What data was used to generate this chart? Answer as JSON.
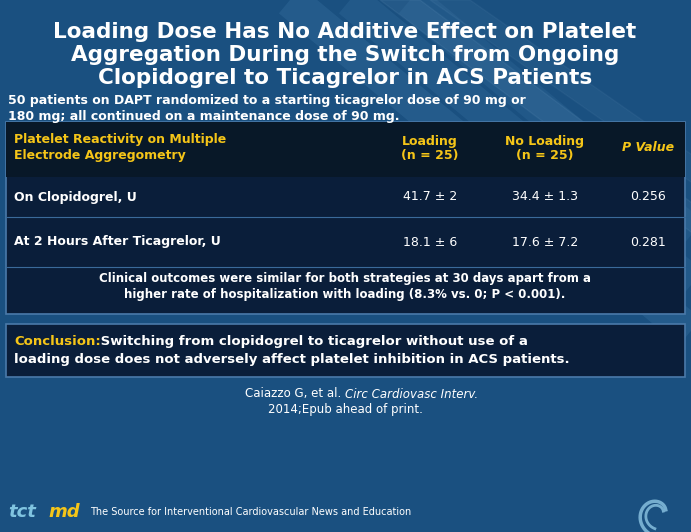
{
  "title_line1": "Loading Dose Has No Additive Effect on Platelet",
  "title_line2": "Aggregation During the Switch from Ongoing",
  "title_line3": "Clopidogrel to Ticagrelor in ACS Patients",
  "subtitle_line1": "50 patients on DAPT randomized to a starting ticagrelor dose of 90 mg or",
  "subtitle_line2": "180 mg; all continued on a maintenance dose of 90 mg.",
  "bg_color": "#1a5080",
  "table_bg": "#0a1e3a",
  "table_border": "#4a7aaa",
  "header_col1": "Platelet Reactivity on Multiple\nElectrode Aggregometry",
  "header_col2": "Loading\n(n = 25)",
  "header_col3": "No Loading\n(n = 25)",
  "header_col4": "P Value",
  "row1_col1": "On Clopidogrel, U",
  "row1_col2": "41.7 ± 2",
  "row1_col3": "34.4 ± 1.3",
  "row1_col4": "0.256",
  "row2_col1": "At 2 Hours After Ticagrelor, U",
  "row2_col2": "18.1 ± 6",
  "row2_col3": "17.6 ± 7.2",
  "row2_col4": "0.281",
  "clinical_line1": "Clinical outcomes were similar for both strategies at 30 days apart from a",
  "clinical_line2": "higher rate of hospitalization with loading (8.3% vs. 0; P < 0.001).",
  "conclusion_label": "Conclusion:",
  "conclusion_line1": " Switching from clopidogrel to ticagrelor without use of a",
  "conclusion_line2": "loading dose does not adversely affect platelet inhibition in ACS patients.",
  "citation_normal": "Caiazzo G, et al. ",
  "citation_italic": "Circ Cardiovasc Interv.",
  "citation_line2": "2014;Epub ahead of print.",
  "footer_text": "The Source for Interventional Cardiovascular News and Education",
  "yellow": "#f5c518",
  "white": "#ffffff",
  "tct_blue": "#80c4e0",
  "tct_gold": "#f5c518",
  "divider_color": "#3a6a9a",
  "row_alt_bg": "#0e2240"
}
